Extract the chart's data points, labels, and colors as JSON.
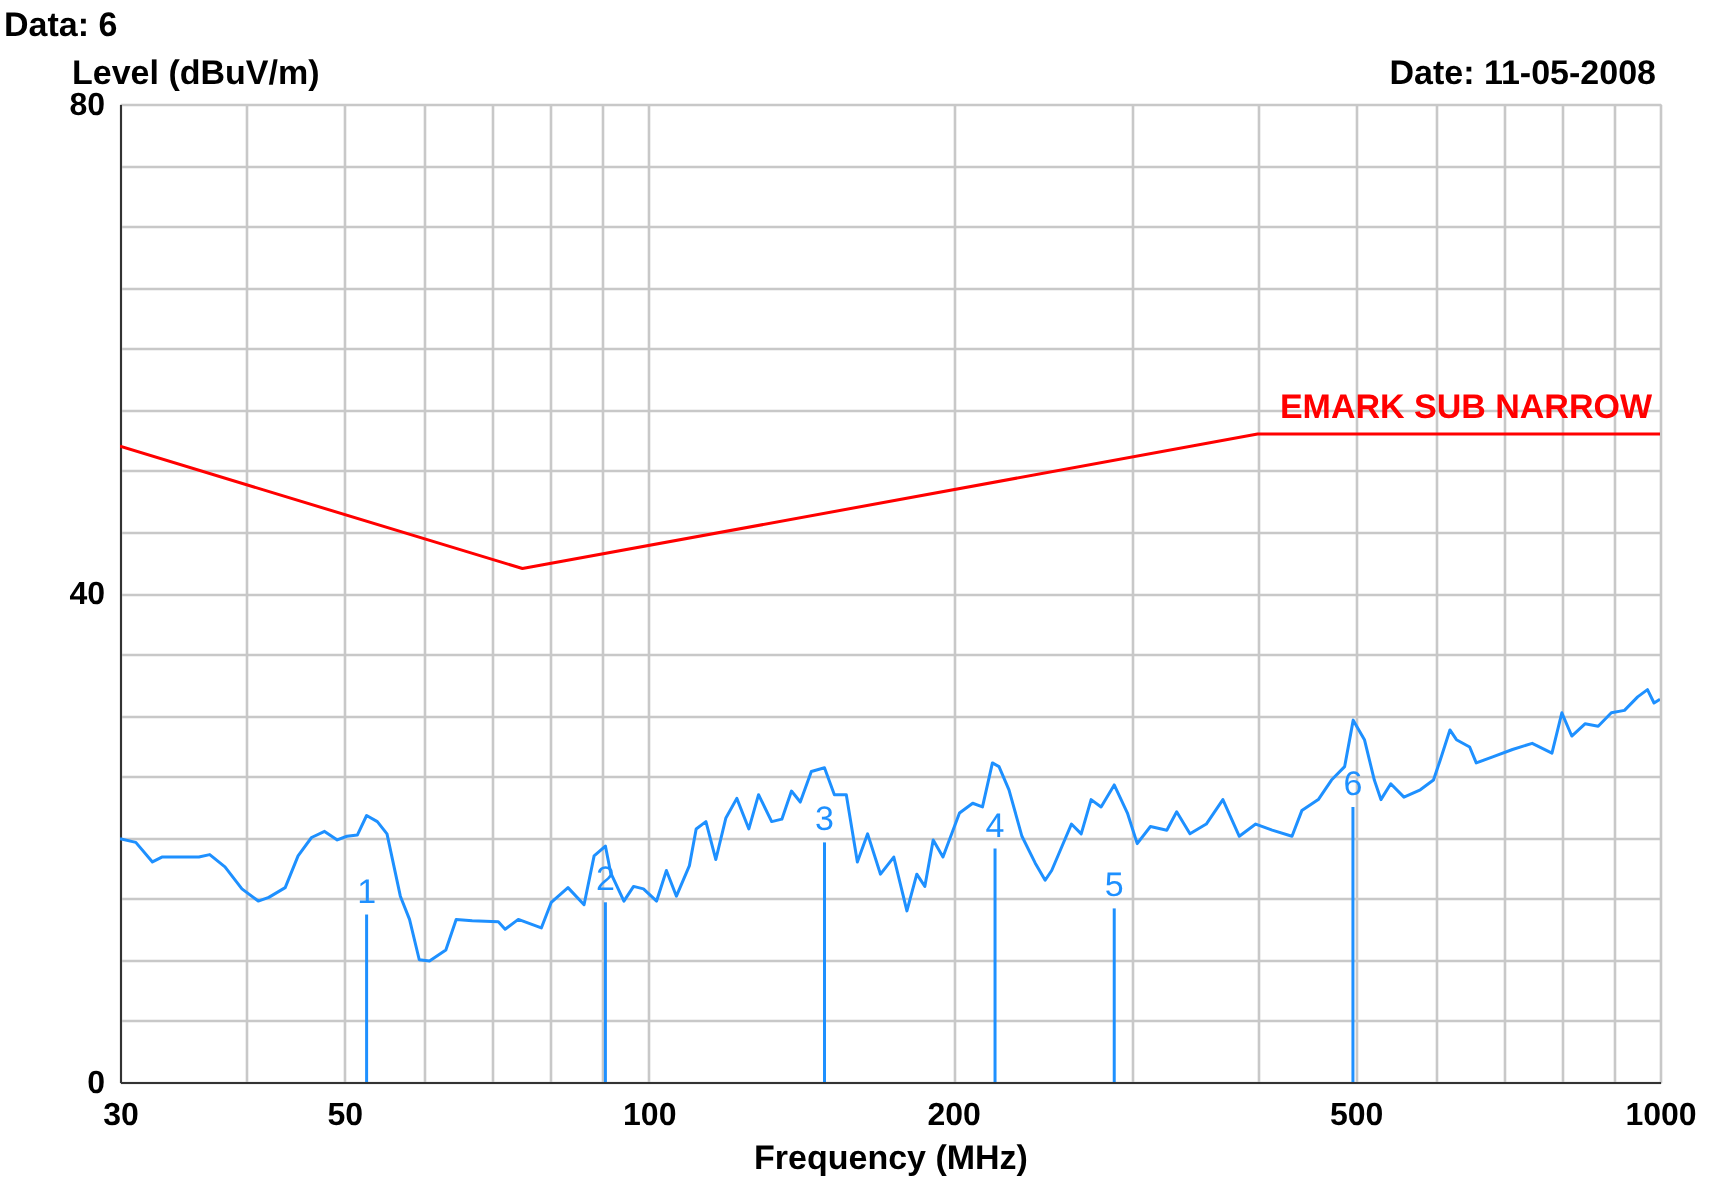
{
  "chart_data": {
    "type": "line",
    "xlabel": "Frequency (MHz)",
    "ylabel": "Level (dBuV/m)",
    "annotations": [
      "Data: 6",
      "Date: 11-05-2008",
      {
        "text": "1",
        "x": 52.6,
        "y": 13.7
      },
      {
        "text": "2",
        "x": 90.6,
        "y": 14.7
      },
      {
        "text": "3",
        "x": 149.2,
        "y": 19.6
      },
      {
        "text": "4",
        "x": 220,
        "y": 19.1
      },
      {
        "text": "5",
        "x": 288.6,
        "y": 14.2
      },
      {
        "text": "6",
        "x": 497,
        "y": 22.5
      }
    ],
    "log": "x",
    "grid": true,
    "xlim": [
      30,
      1000
    ],
    "ylim": [
      0,
      80
    ],
    "xticks": [
      30,
      {
        "value": 40,
        "label": null
      },
      50,
      {
        "value": 60,
        "label": null
      },
      {
        "value": 70,
        "label": null
      },
      {
        "value": 80,
        "label": null
      },
      {
        "value": 90,
        "label": null
      },
      100,
      200,
      {
        "value": 300,
        "label": null
      },
      {
        "value": 400,
        "label": null
      },
      500,
      {
        "value": 600,
        "label": null
      },
      {
        "value": 700,
        "label": null
      },
      {
        "value": 800,
        "label": null
      },
      {
        "value": 900,
        "label": null
      },
      1000
    ],
    "yticks": [
      0,
      {
        "value": 5,
        "label": null
      },
      {
        "value": 10,
        "label": null
      },
      {
        "value": 15,
        "label": null
      },
      {
        "value": 20,
        "label": null
      },
      {
        "value": 25,
        "label": null
      },
      {
        "value": 30,
        "label": null
      },
      {
        "value": 35,
        "label": null
      },
      40,
      {
        "value": 45,
        "label": null
      },
      {
        "value": 50,
        "label": null
      },
      {
        "value": 55,
        "label": null
      },
      {
        "value": 60,
        "label": null
      },
      {
        "value": 65,
        "label": null
      },
      {
        "value": 70,
        "label": null
      },
      {
        "value": 75,
        "label": null
      },
      80
    ],
    "series": [
      {
        "color": "#1e90ff",
        "x": [
          30,
          31.1,
          32.3,
          33.0,
          35.9,
          36.8,
          38.1,
          39.6,
          41.1,
          42.1,
          43.7,
          45.0,
          46.4,
          47.8,
          49.2,
          50.3,
          51.5,
          52.6,
          53.9,
          55.1,
          56.8,
          58.0,
          59.3,
          60.7,
          63.0,
          64.5,
          66.9,
          71.0,
          72.1,
          74.3,
          78.3,
          80.1,
          83.2,
          86.3,
          88.3,
          90.6,
          91.7,
          94.5,
          96.6,
          98.8,
          101.8,
          104.1,
          106.5,
          109.7,
          111.4,
          113.9,
          116.5,
          119.2,
          122.2,
          125.6,
          128.4,
          132.3,
          135.4,
          138.4,
          141.2,
          144.8,
          149.2,
          152.6,
          156.8,
          160.8,
          164.6,
          169.5,
          174.7,
          180.0,
          184.1,
          187.5,
          191.1,
          195.4,
          202.9,
          209.1,
          213.8,
          218.7,
          222.0,
          227.1,
          233.9,
          241.1,
          246.6,
          250.3,
          256.0,
          261.8,
          267.7,
          273.8,
          280.1,
          288.6,
          297.4,
          304.1,
          313.4,
          325.3,
          332.7,
          342.9,
          355.9,
          369.6,
          383.7,
          398.3,
          413.5,
          432.6,
          442.4,
          459.3,
          473.3,
          487.7,
          497.3,
          510.2,
          521.8,
          529.7,
          541.7,
          558.2,
          579.4,
          597.0,
          606.1,
          619.8,
          629.1,
          648.3,
          658.1,
          683.2,
          714.7,
          747.5,
          781.9,
          799.7,
          818.0,
          843.0,
          868.7,
          895.1,
          922.3,
          950.4,
          971.9,
          986.5,
          1000
        ],
        "values": [
          19.9,
          19.6,
          18.0,
          18.4,
          18.4,
          18.6,
          17.6,
          15.8,
          14.8,
          15.1,
          15.9,
          18.5,
          20.0,
          20.5,
          19.8,
          20.1,
          20.2,
          21.8,
          21.3,
          20.3,
          15.2,
          13.3,
          10.0,
          9.9,
          10.8,
          13.3,
          13.2,
          13.1,
          12.5,
          13.3,
          12.6,
          14.7,
          15.9,
          14.5,
          18.5,
          19.3,
          17.1,
          14.8,
          16.0,
          15.8,
          14.8,
          17.3,
          15.2,
          17.7,
          20.7,
          21.3,
          18.2,
          21.6,
          23.2,
          20.7,
          23.5,
          21.3,
          21.5,
          23.8,
          22.9,
          25.4,
          25.7,
          23.5,
          23.5,
          18.0,
          20.3,
          17.0,
          18.4,
          14.0,
          17.0,
          16.0,
          19.8,
          18.4,
          22.0,
          22.8,
          22.5,
          26.1,
          25.8,
          23.9,
          20.1,
          17.9,
          16.5,
          17.3,
          19.2,
          21.1,
          20.3,
          23.1,
          22.5,
          24.3,
          22.0,
          19.5,
          20.9,
          20.6,
          22.1,
          20.3,
          21.1,
          23.1,
          20.1,
          21.1,
          20.6,
          20.1,
          22.2,
          23.1,
          24.7,
          25.8,
          29.6,
          28.0,
          24.7,
          23.1,
          24.4,
          23.3,
          23.9,
          24.7,
          26.3,
          28.8,
          28.0,
          27.4,
          26.1,
          26.6,
          27.2,
          27.7,
          26.9,
          30.2,
          28.3,
          29.3,
          29.1,
          30.2,
          30.4,
          31.5,
          32.1,
          31.0,
          31.3
        ]
      },
      {
        "type": "line",
        "name": "EMARK SUB NARROW",
        "color": "#ff0000",
        "x": [
          30,
          75,
          400,
          1000
        ],
        "values": [
          52,
          42,
          53,
          53
        ]
      },
      {
        "type": "bar",
        "color": "#1e90ff",
        "x": [
          52.6,
          90.6,
          149.2,
          220,
          288.6,
          497
        ],
        "values": [
          13.7,
          14.7,
          19.6,
          19.1,
          14.2,
          22.5
        ]
      }
    ]
  }
}
